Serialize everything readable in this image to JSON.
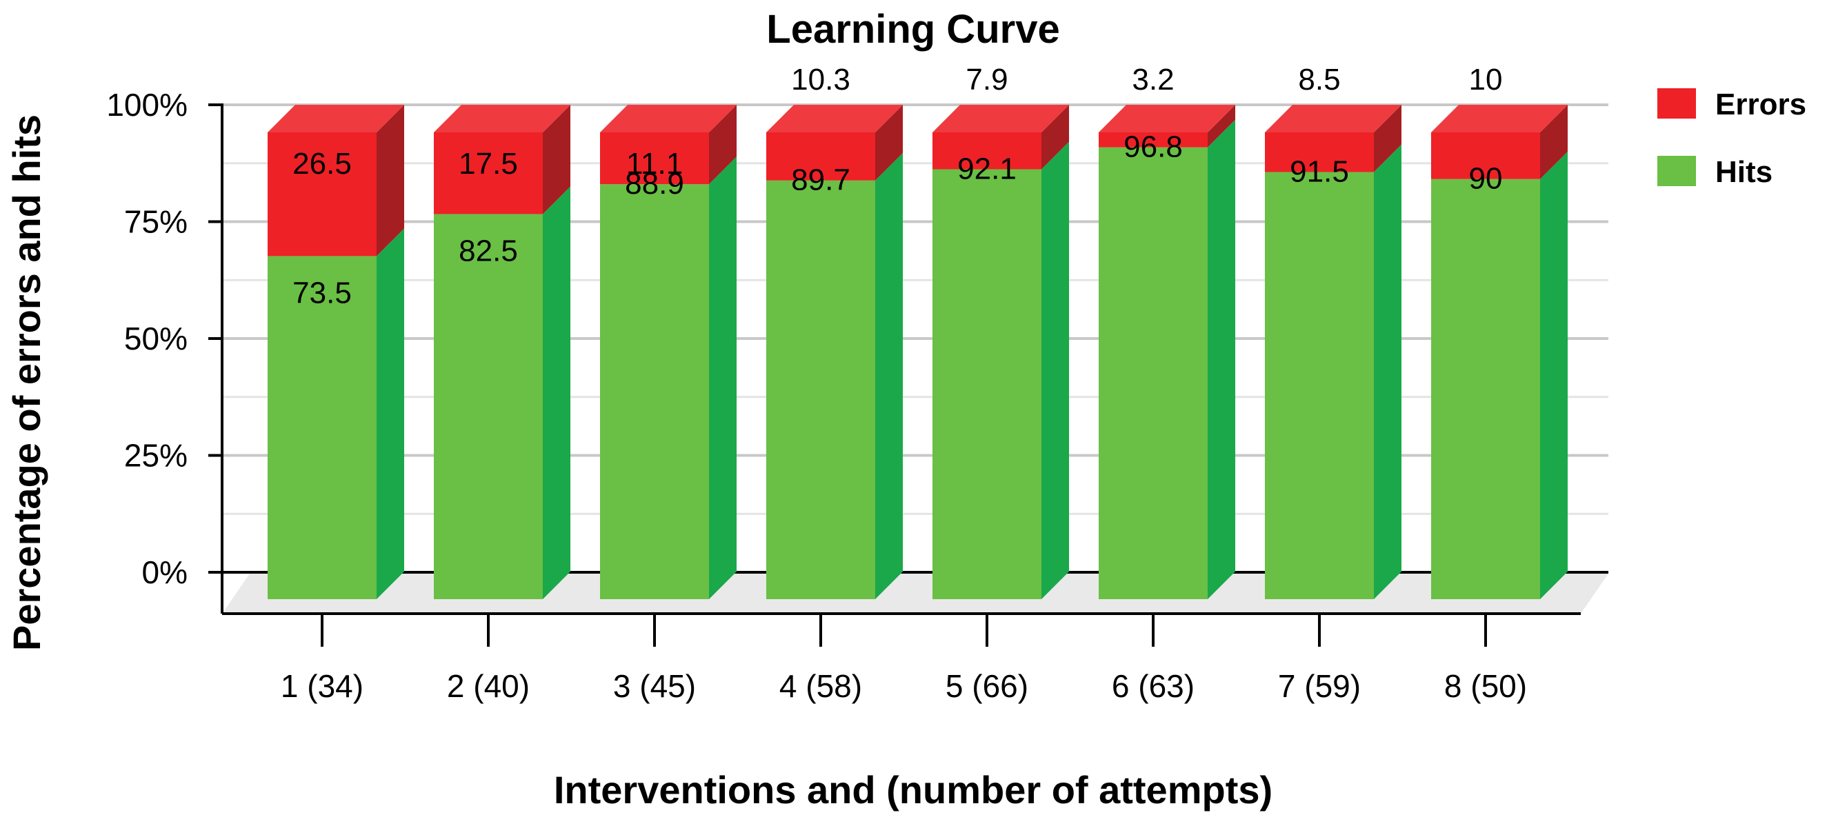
{
  "chart_data": {
    "type": "bar",
    "stacked": true,
    "title": "Learning Curve",
    "xlabel": "Interventions and (number of attempts)",
    "ylabel": "Percentage of errors and hits",
    "ylim": [
      0,
      100
    ],
    "yticks": [
      0,
      25,
      50,
      75,
      100
    ],
    "ytick_labels": [
      "0%",
      "25%",
      "50%",
      "75%",
      "100%"
    ],
    "categories": [
      "1 (34)",
      "2 (40)",
      "3 (45)",
      "4 (58)",
      "5 (66)",
      "6 (63)",
      "7 (59)",
      "8 (50)"
    ],
    "series": [
      {
        "name": "Hits",
        "color": "#6abf45",
        "side_color": "#1aa84a",
        "values": [
          73.5,
          82.5,
          88.9,
          89.7,
          92.1,
          96.8,
          91.5,
          90
        ],
        "labels": [
          "73.5",
          "82.5",
          "88.9",
          "89.7",
          "92.1",
          "96.8",
          "91.5",
          "90"
        ]
      },
      {
        "name": "Errors",
        "color": "#ee2127",
        "side_color": "#a51e22",
        "top_color": "#ef3b3f",
        "values": [
          26.5,
          17.5,
          11.1,
          10.3,
          7.9,
          3.2,
          8.5,
          10
        ],
        "labels": [
          "26.5",
          "17.5",
          "11.1",
          "10.3",
          "7.9",
          "3.2",
          "8.5",
          "10"
        ]
      }
    ],
    "legend": [
      "Errors",
      "Hits"
    ],
    "legend_position": "top-right",
    "grid": true
  }
}
